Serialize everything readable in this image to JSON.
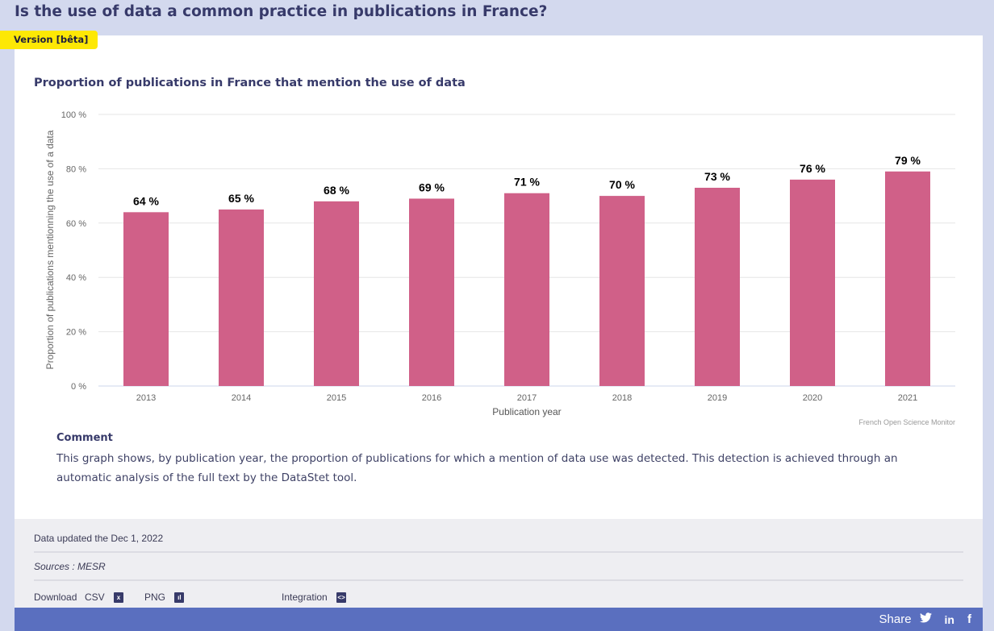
{
  "page_title": "Is the use of data a common practice in publications in France?",
  "beta_badge": "Version [bêta]",
  "chart_data": {
    "type": "bar",
    "title": "Proportion of publications in France that mention the use of data",
    "xlabel": "Publication year",
    "ylabel": "Proportion of publications mentionning the use of a data",
    "categories": [
      "2013",
      "2014",
      "2015",
      "2016",
      "2017",
      "2018",
      "2019",
      "2020",
      "2021"
    ],
    "values": [
      64,
      65,
      68,
      69,
      71,
      70,
      73,
      76,
      79
    ],
    "data_labels": [
      "64 %",
      "65 %",
      "68 %",
      "69 %",
      "71 %",
      "70 %",
      "73 %",
      "76 %",
      "79 %"
    ],
    "yticks": [
      0,
      20,
      40,
      60,
      80,
      100
    ],
    "ytick_labels": [
      "0 %",
      "20 %",
      "40 %",
      "60 %",
      "80 %",
      "100 %"
    ],
    "ylim": [
      0,
      100
    ],
    "grid": true,
    "bar_color": "#d06088",
    "credit": "French Open Science Monitor"
  },
  "comment": {
    "heading": "Comment",
    "text": "This graph shows, by publication year, the proportion of publications for which a mention of data use was detected. This detection is achieved through an automatic analysis of the full text by the DataStet tool."
  },
  "footer": {
    "updated": "Data updated the Dec 1, 2022",
    "sources": "Sources : MESR",
    "download_label": "Download",
    "csv_label": "CSV",
    "png_label": "PNG",
    "integration_label": "Integration"
  },
  "share": {
    "label": "Share",
    "icons": [
      "twitter-icon",
      "linkedin-icon",
      "facebook-icon"
    ]
  },
  "colors": {
    "accent": "#373a6a",
    "badge": "#fde805",
    "share_bar": "#5a6fbf"
  }
}
